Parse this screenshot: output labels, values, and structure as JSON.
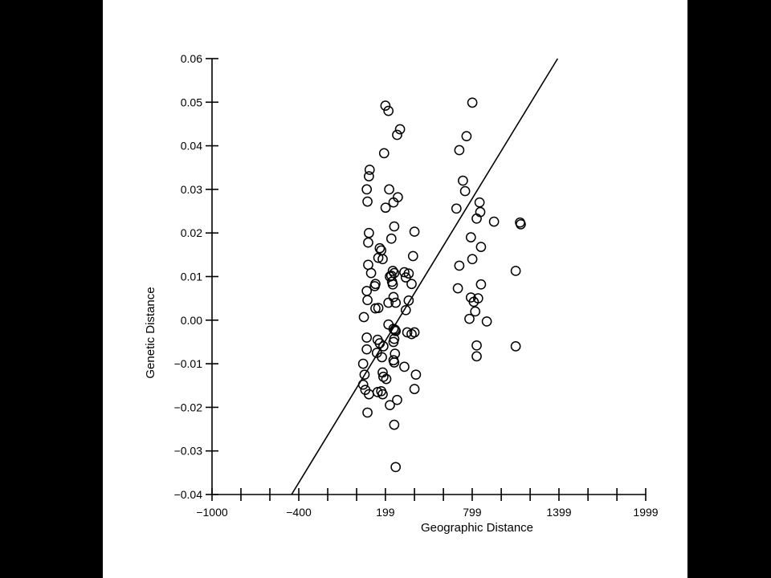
{
  "chart_data": {
    "type": "scatter",
    "xlabel": "Geographic Distance",
    "ylabel": "Genetic Distance",
    "xlim": [
      -1000,
      1999
    ],
    "ylim": [
      -0.04,
      0.06
    ],
    "x_ticks": [
      -1000,
      -800,
      -600,
      -400,
      -200,
      0,
      199,
      400,
      600,
      799,
      1000,
      1200,
      1399,
      1600,
      1800,
      1999
    ],
    "x_tick_labels": [
      {
        "value": -1000,
        "label": "−1000"
      },
      {
        "value": -400,
        "label": "−400"
      },
      {
        "value": 199,
        "label": "199"
      },
      {
        "value": 799,
        "label": "799"
      },
      {
        "value": 1399,
        "label": "1399"
      },
      {
        "value": 1999,
        "label": "1999"
      }
    ],
    "y_ticks": [
      {
        "value": 0.06,
        "label": "0.06"
      },
      {
        "value": 0.05,
        "label": "0.05"
      },
      {
        "value": 0.04,
        "label": "0.04"
      },
      {
        "value": 0.03,
        "label": "0.03"
      },
      {
        "value": 0.02,
        "label": "0.02"
      },
      {
        "value": 0.01,
        "label": "0.01"
      },
      {
        "value": 0.0,
        "label": "0.00"
      },
      {
        "value": -0.01,
        "label": "−0.01"
      },
      {
        "value": -0.02,
        "label": "−0.02"
      },
      {
        "value": -0.03,
        "label": "−0.03"
      },
      {
        "value": -0.04,
        "label": "−0.04"
      }
    ],
    "grid": false,
    "legend": "none",
    "marker": "open-circle",
    "regression_line": {
      "x": [
        -450,
        1390
      ],
      "y": [
        -0.04,
        0.06
      ]
    },
    "points": [
      [
        199,
        0.0492
      ],
      [
        300,
        0.0438
      ],
      [
        280,
        0.0425
      ],
      [
        800,
        0.0499
      ],
      [
        220,
        0.048
      ],
      [
        190,
        0.0383
      ],
      [
        710,
        0.039
      ],
      [
        760,
        0.0422
      ],
      [
        90,
        0.0345
      ],
      [
        85,
        0.033
      ],
      [
        70,
        0.03
      ],
      [
        75,
        0.0272
      ],
      [
        225,
        0.03
      ],
      [
        200,
        0.0258
      ],
      [
        285,
        0.0282
      ],
      [
        255,
        0.027
      ],
      [
        735,
        0.032
      ],
      [
        750,
        0.0296
      ],
      [
        690,
        0.0256
      ],
      [
        850,
        0.027
      ],
      [
        855,
        0.0248
      ],
      [
        830,
        0.0233
      ],
      [
        950,
        0.0226
      ],
      [
        1130,
        0.0224
      ],
      [
        1135,
        0.022
      ],
      [
        85,
        0.02
      ],
      [
        80,
        0.0178
      ],
      [
        260,
        0.0215
      ],
      [
        240,
        0.0187
      ],
      [
        400,
        0.0203
      ],
      [
        790,
        0.019
      ],
      [
        860,
        0.0168
      ],
      [
        160,
        0.0165
      ],
      [
        170,
        0.016
      ],
      [
        150,
        0.0143
      ],
      [
        180,
        0.014
      ],
      [
        390,
        0.0147
      ],
      [
        800,
        0.014
      ],
      [
        80,
        0.0127
      ],
      [
        100,
        0.0108
      ],
      [
        230,
        0.01
      ],
      [
        240,
        0.0102
      ],
      [
        250,
        0.0113
      ],
      [
        260,
        0.0108
      ],
      [
        330,
        0.011
      ],
      [
        360,
        0.0107
      ],
      [
        340,
        0.0098
      ],
      [
        380,
        0.0083
      ],
      [
        710,
        0.0125
      ],
      [
        1100,
        0.0113
      ],
      [
        130,
        0.0083
      ],
      [
        125,
        0.0078
      ],
      [
        70,
        0.0067
      ],
      [
        75,
        0.0046
      ],
      [
        245,
        0.0088
      ],
      [
        250,
        0.0082
      ],
      [
        255,
        0.0053
      ],
      [
        220,
        0.004
      ],
      [
        270,
        0.004
      ],
      [
        360,
        0.0045
      ],
      [
        700,
        0.0073
      ],
      [
        860,
        0.0082
      ],
      [
        790,
        0.0052
      ],
      [
        810,
        0.0042
      ],
      [
        820,
        0.002
      ],
      [
        840,
        0.005
      ],
      [
        50,
        0.0007
      ],
      [
        130,
        0.0027
      ],
      [
        150,
        0.0028
      ],
      [
        340,
        0.0023
      ],
      [
        780,
        0.0003
      ],
      [
        900,
        -0.0003
      ],
      [
        220,
        -0.001
      ],
      [
        255,
        -0.002
      ],
      [
        265,
        -0.0022
      ],
      [
        270,
        -0.0025
      ],
      [
        350,
        -0.0028
      ],
      [
        380,
        -0.0032
      ],
      [
        400,
        -0.0028
      ],
      [
        260,
        -0.0043
      ],
      [
        255,
        -0.005
      ],
      [
        70,
        -0.004
      ],
      [
        145,
        -0.0045
      ],
      [
        160,
        -0.0053
      ],
      [
        185,
        -0.006
      ],
      [
        70,
        -0.0067
      ],
      [
        140,
        -0.0075
      ],
      [
        265,
        -0.0077
      ],
      [
        255,
        -0.0092
      ],
      [
        260,
        -0.0097
      ],
      [
        830,
        -0.0058
      ],
      [
        1100,
        -0.006
      ],
      [
        175,
        -0.0085
      ],
      [
        45,
        -0.01
      ],
      [
        55,
        -0.0125
      ],
      [
        180,
        -0.012
      ],
      [
        185,
        -0.013
      ],
      [
        205,
        -0.0135
      ],
      [
        330,
        -0.0107
      ],
      [
        410,
        -0.0125
      ],
      [
        830,
        -0.0083
      ],
      [
        45,
        -0.0148
      ],
      [
        60,
        -0.016
      ],
      [
        85,
        -0.017
      ],
      [
        145,
        -0.0165
      ],
      [
        170,
        -0.0163
      ],
      [
        180,
        -0.017
      ],
      [
        400,
        -0.0158
      ],
      [
        280,
        -0.0183
      ],
      [
        230,
        -0.0195
      ],
      [
        75,
        -0.0212
      ],
      [
        260,
        -0.024
      ],
      [
        270,
        -0.0337
      ]
    ]
  }
}
